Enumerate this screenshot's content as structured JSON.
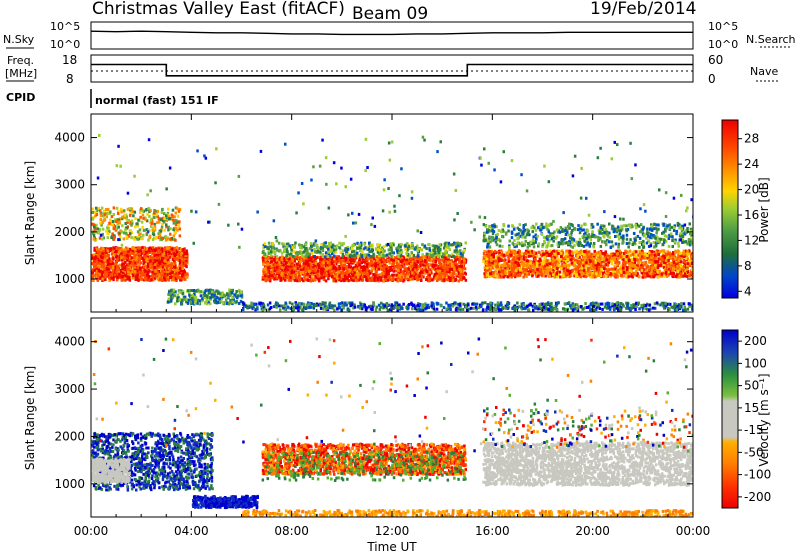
{
  "header": {
    "station": "Christmas Valley East (fitACF)",
    "beam": "Beam 09",
    "date": "19/Feb/2014"
  },
  "panel_labels": {
    "nsky": "N.Sky",
    "nsearch": "N.Search",
    "freq_line1": "Freq.",
    "freq_line2": "[MHz]",
    "nave": "Nave",
    "cpid": "CPID",
    "mode": "normal (fast) 151 IF"
  },
  "strip_ticks": {
    "noise_left": [
      "10^5",
      "10^0"
    ],
    "noise_right": [
      "10^5",
      "10^0"
    ],
    "freq_left": [
      "18",
      "8"
    ],
    "freq_right": [
      "60",
      "0"
    ]
  },
  "chart_data": [
    {
      "type": "line",
      "name": "noise",
      "series": [
        {
          "name": "N.Sky",
          "x": [
            0,
            1,
            2,
            3,
            4,
            5,
            6,
            7,
            8,
            9,
            10,
            11,
            12,
            13,
            14,
            15,
            16,
            17,
            18,
            19,
            20,
            21,
            22,
            23,
            24
          ],
          "values": [
            3.3,
            3.2,
            3.3,
            3.2,
            3.1,
            3.0,
            3.0,
            2.9,
            2.8,
            2.8,
            2.7,
            2.7,
            2.7,
            2.8,
            2.8,
            2.9,
            3.0,
            3.0,
            3.0,
            3.1,
            3.1,
            3.1,
            3.1,
            3.1,
            3.1
          ]
        }
      ],
      "ylim": [
        0,
        5
      ]
    },
    {
      "type": "line",
      "name": "frequency",
      "series": [
        {
          "name": "Freq.",
          "x": [
            0,
            3,
            3,
            15,
            15,
            24
          ],
          "values": [
            14.5,
            14.5,
            10.3,
            10.3,
            14.5,
            14.5
          ]
        }
      ],
      "ylim": [
        8,
        18
      ]
    },
    {
      "type": "heatmap",
      "name": "power",
      "x_ticks": [
        "00:00",
        "04:00",
        "08:00",
        "12:00",
        "16:00",
        "20:00",
        "00:00"
      ],
      "y_ticks": [
        "1000",
        "2000",
        "3000",
        "4000"
      ],
      "ylabel": "Slant Range [km]",
      "xlim": [
        0,
        24
      ],
      "ylim": [
        300,
        4500
      ],
      "colorbar": {
        "label": "Power [dB]",
        "ticks": [
          "28",
          "24",
          "20",
          "16",
          "12",
          "8",
          "4"
        ]
      }
    },
    {
      "type": "heatmap",
      "name": "velocity",
      "x_ticks": [
        "00:00",
        "04:00",
        "08:00",
        "12:00",
        "16:00",
        "20:00",
        "00:00"
      ],
      "y_ticks": [
        "1000",
        "2000",
        "3000",
        "4000"
      ],
      "ylabel": "Slant Range [km]",
      "xlabel": "Time UT",
      "xlim": [
        0,
        24
      ],
      "ylim": [
        300,
        4500
      ],
      "colorbar": {
        "label": "Velocity [m s⁻¹]",
        "ticks": [
          "200",
          "100",
          "50",
          "15",
          "-15",
          "-50",
          "-100",
          "-200"
        ]
      }
    }
  ],
  "colors": {
    "power_scale": [
      "#0000dd",
      "#0050c8",
      "#2a7f3f",
      "#5aa040",
      "#9acd32",
      "#ffd400",
      "#ff9000",
      "#ff5000",
      "#ee0000"
    ],
    "velocity_scale": [
      "#ee0000",
      "#ff3000",
      "#ff7f00",
      "#ffae00",
      "#c8c8c0",
      "#c8c8c0",
      "#55b030",
      "#2a7f3f",
      "#1030c0",
      "#0000cc"
    ]
  }
}
